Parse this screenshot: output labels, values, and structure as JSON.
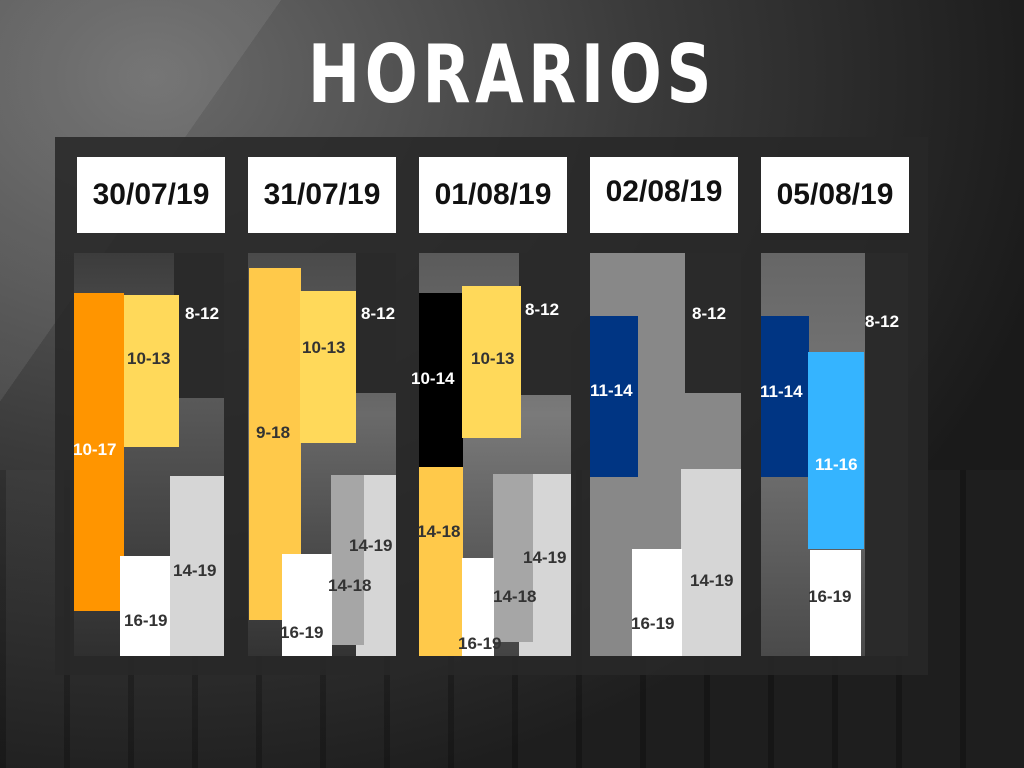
{
  "title": "HORARIOS",
  "days": [
    {
      "date": "30/07/19",
      "labels": {
        "a": "8-12",
        "b": "10-13",
        "c": "10-17",
        "d": "14-19",
        "e": "16-19"
      }
    },
    {
      "date": "31/07/19",
      "labels": {
        "a": "8-12",
        "b": "10-13",
        "c": "9-18",
        "d": "14-19",
        "e": "14-18",
        "f": "16-19"
      }
    },
    {
      "date": "01/08/19",
      "labels": {
        "a": "8-12",
        "b": "10-13",
        "c": "10-14",
        "d": "14-18",
        "e": "14-19",
        "f": "14-18",
        "g": "16-19"
      }
    },
    {
      "date": "02/08/19",
      "labels": {
        "a": "8-12",
        "b": "11-14",
        "c": "14-19",
        "d": "16-19"
      }
    },
    {
      "date": "05/08/19",
      "labels": {
        "a": "8-12",
        "b": "11-14",
        "c": "11-16",
        "d": "16-19"
      }
    }
  ],
  "colors": {
    "orange": "#ff9500",
    "yellow": "#ffd95a",
    "gold": "#ffc94a",
    "black": "#000000",
    "navy": "#003583",
    "sky": "#35b4ff",
    "white": "#ffffff",
    "lightgray": "#d6d6d6",
    "midgray": "#a6a6a6"
  }
}
